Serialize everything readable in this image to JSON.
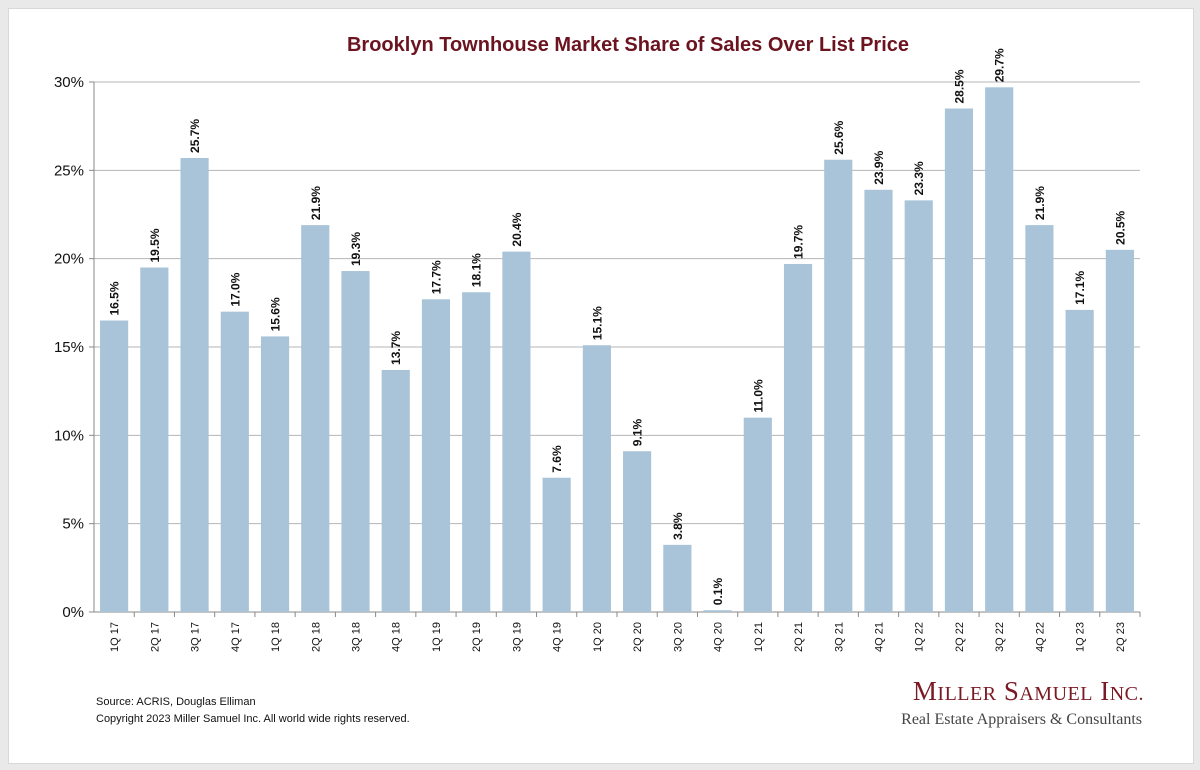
{
  "chart_data": {
    "type": "bar",
    "title": "Brooklyn Townhouse Market Share of Sales Over List Price",
    "categories": [
      "1Q 17",
      "2Q 17",
      "3Q 17",
      "4Q 17",
      "1Q 18",
      "2Q 18",
      "3Q 18",
      "4Q 18",
      "1Q 19",
      "2Q 19",
      "3Q 19",
      "4Q 19",
      "1Q 20",
      "2Q 20",
      "3Q 20",
      "4Q 20",
      "1Q 21",
      "2Q 21",
      "3Q 21",
      "4Q 21",
      "1Q 22",
      "2Q 22",
      "3Q 22",
      "4Q 22",
      "1Q 23",
      "2Q 23"
    ],
    "values": [
      16.5,
      19.5,
      25.7,
      17.0,
      15.6,
      21.9,
      19.3,
      13.7,
      17.7,
      18.1,
      20.4,
      7.6,
      15.1,
      9.1,
      3.8,
      0.1,
      11.0,
      19.7,
      25.6,
      23.9,
      23.3,
      28.5,
      29.7,
      21.9,
      17.1,
      20.5
    ],
    "data_labels": [
      "16.5%",
      "19.5%",
      "25.7%",
      "17.0%",
      "15.6%",
      "21.9%",
      "19.3%",
      "13.7%",
      "17.7%",
      "18.1%",
      "20.4%",
      "7.6%",
      "15.1%",
      "9.1%",
      "3.8%",
      "0.1%",
      "11.0%",
      "19.7%",
      "25.6%",
      "23.9%",
      "23.3%",
      "28.5%",
      "29.7%",
      "21.9%",
      "17.1%",
      "20.5%"
    ],
    "yticks": [
      "0%",
      "5%",
      "10%",
      "15%",
      "20%",
      "25%",
      "30%"
    ],
    "ylim": [
      0,
      30
    ],
    "xlabel": "",
    "ylabel": "",
    "grid": true,
    "legend": "none",
    "bar_color": "#a9c4d8",
    "title_color": "#6b1420"
  },
  "footer": {
    "source": "Source: ACRIS, Douglas Elliman",
    "copyright": "Copyright 2023 Miller Samuel Inc.  All world wide rights reserved."
  },
  "logo": {
    "name_first_initial": "M",
    "name_first_rest": "ILLER",
    "name_second_initial": "S",
    "name_second_rest": "AMUEL",
    "name_third_initial": "I",
    "name_third_rest": "NC.",
    "tagline": "Real Estate Appraisers & Consultants"
  }
}
